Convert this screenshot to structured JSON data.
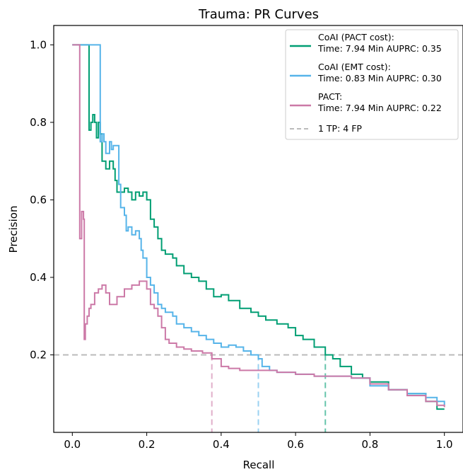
{
  "chart_data": {
    "type": "line",
    "title": "Trauma: PR Curves",
    "xlabel": "Recall",
    "ylabel": "Precision",
    "xlim": [
      -0.05,
      1.05
    ],
    "ylim": [
      0.0,
      1.05
    ],
    "xticks": [
      0.0,
      0.2,
      0.4,
      0.6,
      0.8,
      1.0
    ],
    "xtick_labels": [
      "0.0",
      "0.2",
      "0.4",
      "0.6",
      "0.8",
      "1.0"
    ],
    "yticks": [
      0.2,
      0.4,
      0.6,
      0.8,
      1.0
    ],
    "ytick_labels": [
      "0.2",
      "0.4",
      "0.6",
      "0.8",
      "1.0"
    ],
    "grid": false,
    "legend_position": "top-right",
    "reference_line": {
      "y": 0.2,
      "label": "1 TP: 4 FP",
      "color": "#bbbbbb"
    },
    "series": [
      {
        "name": "CoAI (PACT cost):",
        "name2": "Time: 7.94 Min AUPRC: 0.35",
        "color": "#009e73",
        "drop_recall": 0.68,
        "points": [
          [
            0.0,
            1.0
          ],
          [
            0.045,
            1.0
          ],
          [
            0.045,
            0.78
          ],
          [
            0.05,
            0.8
          ],
          [
            0.055,
            0.82
          ],
          [
            0.06,
            0.8
          ],
          [
            0.065,
            0.76
          ],
          [
            0.07,
            0.8
          ],
          [
            0.075,
            0.77
          ],
          [
            0.08,
            0.7
          ],
          [
            0.09,
            0.68
          ],
          [
            0.1,
            0.7
          ],
          [
            0.11,
            0.68
          ],
          [
            0.115,
            0.65
          ],
          [
            0.12,
            0.62
          ],
          [
            0.13,
            0.62
          ],
          [
            0.14,
            0.63
          ],
          [
            0.15,
            0.62
          ],
          [
            0.16,
            0.6
          ],
          [
            0.17,
            0.62
          ],
          [
            0.18,
            0.61
          ],
          [
            0.19,
            0.62
          ],
          [
            0.2,
            0.6
          ],
          [
            0.21,
            0.55
          ],
          [
            0.22,
            0.53
          ],
          [
            0.23,
            0.5
          ],
          [
            0.24,
            0.47
          ],
          [
            0.25,
            0.46
          ],
          [
            0.27,
            0.45
          ],
          [
            0.28,
            0.43
          ],
          [
            0.3,
            0.41
          ],
          [
            0.32,
            0.4
          ],
          [
            0.34,
            0.39
          ],
          [
            0.36,
            0.37
          ],
          [
            0.38,
            0.35
          ],
          [
            0.4,
            0.355
          ],
          [
            0.42,
            0.34
          ],
          [
            0.45,
            0.32
          ],
          [
            0.48,
            0.31
          ],
          [
            0.5,
            0.3
          ],
          [
            0.52,
            0.29
          ],
          [
            0.55,
            0.28
          ],
          [
            0.58,
            0.27
          ],
          [
            0.6,
            0.25
          ],
          [
            0.62,
            0.24
          ],
          [
            0.65,
            0.22
          ],
          [
            0.68,
            0.2
          ],
          [
            0.7,
            0.19
          ],
          [
            0.72,
            0.17
          ],
          [
            0.75,
            0.15
          ],
          [
            0.78,
            0.14
          ],
          [
            0.8,
            0.13
          ],
          [
            0.85,
            0.11
          ],
          [
            0.9,
            0.1
          ],
          [
            0.95,
            0.08
          ],
          [
            0.98,
            0.06
          ],
          [
            1.0,
            0.06
          ]
        ]
      },
      {
        "name": "CoAI (EMT cost):",
        "name2": "Time: 0.83 Min AUPRC: 0.30",
        "color": "#56b4e9",
        "drop_recall": 0.5,
        "points": [
          [
            0.0,
            1.0
          ],
          [
            0.075,
            1.0
          ],
          [
            0.075,
            0.75
          ],
          [
            0.08,
            0.77
          ],
          [
            0.085,
            0.75
          ],
          [
            0.09,
            0.72
          ],
          [
            0.1,
            0.75
          ],
          [
            0.105,
            0.73
          ],
          [
            0.11,
            0.74
          ],
          [
            0.12,
            0.74
          ],
          [
            0.125,
            0.64
          ],
          [
            0.13,
            0.58
          ],
          [
            0.14,
            0.56
          ],
          [
            0.145,
            0.52
          ],
          [
            0.15,
            0.53
          ],
          [
            0.16,
            0.51
          ],
          [
            0.17,
            0.52
          ],
          [
            0.18,
            0.5
          ],
          [
            0.185,
            0.47
          ],
          [
            0.19,
            0.45
          ],
          [
            0.2,
            0.4
          ],
          [
            0.21,
            0.38
          ],
          [
            0.22,
            0.36
          ],
          [
            0.23,
            0.33
          ],
          [
            0.24,
            0.32
          ],
          [
            0.25,
            0.31
          ],
          [
            0.27,
            0.3
          ],
          [
            0.28,
            0.28
          ],
          [
            0.3,
            0.27
          ],
          [
            0.32,
            0.26
          ],
          [
            0.34,
            0.25
          ],
          [
            0.36,
            0.24
          ],
          [
            0.38,
            0.23
          ],
          [
            0.4,
            0.22
          ],
          [
            0.42,
            0.225
          ],
          [
            0.44,
            0.22
          ],
          [
            0.46,
            0.21
          ],
          [
            0.48,
            0.2
          ],
          [
            0.5,
            0.19
          ],
          [
            0.51,
            0.17
          ],
          [
            0.53,
            0.16
          ],
          [
            0.55,
            0.155
          ],
          [
            0.6,
            0.15
          ],
          [
            0.65,
            0.145
          ],
          [
            0.7,
            0.145
          ],
          [
            0.75,
            0.14
          ],
          [
            0.8,
            0.12
          ],
          [
            0.85,
            0.11
          ],
          [
            0.9,
            0.1
          ],
          [
            0.95,
            0.09
          ],
          [
            0.98,
            0.08
          ],
          [
            1.0,
            0.07
          ]
        ]
      },
      {
        "name": "PACT:",
        "name2": "Time: 7.94 Min AUPRC: 0.22",
        "color": "#cc79a7",
        "drop_recall": 0.375,
        "points": [
          [
            0.0,
            1.0
          ],
          [
            0.02,
            1.0
          ],
          [
            0.02,
            0.5
          ],
          [
            0.025,
            0.57
          ],
          [
            0.03,
            0.55
          ],
          [
            0.032,
            0.24
          ],
          [
            0.035,
            0.28
          ],
          [
            0.04,
            0.3
          ],
          [
            0.045,
            0.32
          ],
          [
            0.05,
            0.33
          ],
          [
            0.06,
            0.36
          ],
          [
            0.07,
            0.37
          ],
          [
            0.08,
            0.38
          ],
          [
            0.09,
            0.36
          ],
          [
            0.1,
            0.33
          ],
          [
            0.12,
            0.35
          ],
          [
            0.14,
            0.37
          ],
          [
            0.16,
            0.38
          ],
          [
            0.18,
            0.39
          ],
          [
            0.2,
            0.37
          ],
          [
            0.21,
            0.33
          ],
          [
            0.22,
            0.32
          ],
          [
            0.23,
            0.3
          ],
          [
            0.24,
            0.27
          ],
          [
            0.25,
            0.24
          ],
          [
            0.26,
            0.23
          ],
          [
            0.28,
            0.22
          ],
          [
            0.3,
            0.215
          ],
          [
            0.32,
            0.21
          ],
          [
            0.35,
            0.205
          ],
          [
            0.375,
            0.19
          ],
          [
            0.4,
            0.17
          ],
          [
            0.42,
            0.165
          ],
          [
            0.45,
            0.16
          ],
          [
            0.5,
            0.16
          ],
          [
            0.55,
            0.155
          ],
          [
            0.6,
            0.15
          ],
          [
            0.65,
            0.145
          ],
          [
            0.7,
            0.145
          ],
          [
            0.75,
            0.14
          ],
          [
            0.8,
            0.125
          ],
          [
            0.85,
            0.11
          ],
          [
            0.9,
            0.095
          ],
          [
            0.95,
            0.08
          ],
          [
            0.98,
            0.07
          ],
          [
            1.0,
            0.065
          ]
        ]
      }
    ]
  }
}
